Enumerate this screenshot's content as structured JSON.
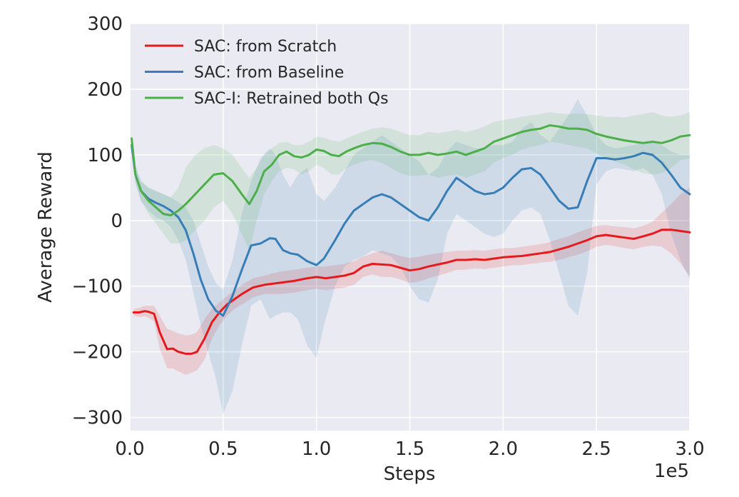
{
  "chart_data": {
    "type": "line",
    "xlabel": "Steps",
    "ylabel": "Average Reward",
    "x_offset_label": "1e5",
    "xlim": [
      0,
      300000
    ],
    "ylim": [
      -320,
      300
    ],
    "x_ticks": [
      0,
      50000,
      100000,
      150000,
      200000,
      250000,
      300000
    ],
    "x_tick_labels": [
      "0.0",
      "0.5",
      "1.0",
      "1.5",
      "2.0",
      "2.5",
      "3.0"
    ],
    "y_ticks": [
      -300,
      -200,
      -100,
      0,
      100,
      200,
      300
    ],
    "y_tick_labels": [
      "−300",
      "−200",
      "−100",
      "0",
      "100",
      "200",
      "300"
    ],
    "grid": true,
    "background": "#eaeaf2",
    "legend_position": "top-left",
    "series": [
      {
        "name": "SAC: from Scratch",
        "color": "#e41a1c",
        "x": [
          2000,
          5000,
          8000,
          10000,
          13000,
          16000,
          20000,
          23000,
          26000,
          30000,
          33000,
          36000,
          40000,
          44000,
          48000,
          52000,
          56000,
          60000,
          66000,
          72000,
          80000,
          88000,
          95000,
          100000,
          105000,
          110000,
          115000,
          120000,
          125000,
          130000,
          135000,
          140000,
          145000,
          150000,
          155000,
          160000,
          165000,
          170000,
          175000,
          180000,
          185000,
          190000,
          195000,
          200000,
          205000,
          210000,
          215000,
          220000,
          225000,
          230000,
          235000,
          240000,
          245000,
          250000,
          255000,
          260000,
          265000,
          270000,
          275000,
          280000,
          285000,
          290000,
          295000,
          300000
        ],
        "y": [
          -140,
          -140,
          -138,
          -139,
          -142,
          -170,
          -196,
          -195,
          -200,
          -203,
          -203,
          -200,
          -180,
          -155,
          -140,
          -128,
          -120,
          -112,
          -102,
          -98,
          -95,
          -92,
          -88,
          -86,
          -88,
          -86,
          -84,
          -80,
          -70,
          -66,
          -67,
          -68,
          -72,
          -76,
          -74,
          -70,
          -67,
          -64,
          -60,
          -60,
          -59,
          -60,
          -58,
          -56,
          -55,
          -54,
          -52,
          -50,
          -48,
          -44,
          -40,
          -35,
          -30,
          -24,
          -22,
          -24,
          -26,
          -28,
          -24,
          -20,
          -14,
          -14,
          -16,
          -18
        ],
        "band_upper": [
          -135,
          -133,
          -130,
          -130,
          -130,
          -145,
          -165,
          -168,
          -172,
          -175,
          -174,
          -170,
          -150,
          -135,
          -125,
          -115,
          -107,
          -98,
          -88,
          -84,
          -78,
          -75,
          -72,
          -70,
          -70,
          -68,
          -66,
          -62,
          -55,
          -50,
          -46,
          -50,
          -54,
          -57,
          -55,
          -52,
          -50,
          -48,
          -46,
          -46,
          -45,
          -46,
          -44,
          -42,
          -42,
          -40,
          -38,
          -36,
          -33,
          -28,
          -24,
          -18,
          -13,
          -8,
          -7,
          -9,
          -10,
          -12,
          -8,
          -2,
          12,
          25,
          40,
          50
        ],
        "band_lower": [
          -145,
          -147,
          -146,
          -148,
          -154,
          -195,
          -225,
          -225,
          -230,
          -235,
          -232,
          -228,
          -212,
          -180,
          -160,
          -145,
          -135,
          -128,
          -117,
          -112,
          -112,
          -110,
          -106,
          -104,
          -106,
          -104,
          -102,
          -98,
          -86,
          -82,
          -86,
          -86,
          -90,
          -95,
          -93,
          -88,
          -84,
          -80,
          -75,
          -75,
          -73,
          -74,
          -72,
          -70,
          -68,
          -68,
          -66,
          -64,
          -63,
          -60,
          -56,
          -52,
          -47,
          -40,
          -37,
          -39,
          -42,
          -44,
          -40,
          -38,
          -40,
          -50,
          -65,
          -85
        ]
      },
      {
        "name": "SAC: from Baseline",
        "color": "#377eb8",
        "x": [
          1000,
          3000,
          6000,
          10000,
          14000,
          18000,
          22000,
          26000,
          30000,
          34000,
          38000,
          42000,
          46000,
          50000,
          55000,
          60000,
          65000,
          70000,
          75000,
          78000,
          82000,
          86000,
          90000,
          95000,
          100000,
          104000,
          110000,
          115000,
          120000,
          125000,
          130000,
          135000,
          140000,
          145000,
          150000,
          155000,
          160000,
          165000,
          170000,
          175000,
          180000,
          185000,
          190000,
          195000,
          200000,
          205000,
          210000,
          215000,
          220000,
          225000,
          230000,
          235000,
          240000,
          245000,
          250000,
          255000,
          260000,
          265000,
          270000,
          275000,
          280000,
          285000,
          290000,
          295000,
          300000
        ],
        "y": [
          115,
          70,
          45,
          33,
          27,
          22,
          15,
          5,
          -15,
          -50,
          -90,
          -120,
          -137,
          -145,
          -115,
          -75,
          -38,
          -35,
          -27,
          -28,
          -45,
          -50,
          -52,
          -62,
          -68,
          -58,
          -30,
          -5,
          15,
          25,
          35,
          40,
          35,
          25,
          15,
          5,
          0,
          20,
          45,
          65,
          55,
          45,
          40,
          42,
          50,
          65,
          78,
          80,
          70,
          50,
          30,
          18,
          20,
          60,
          95,
          95,
          93,
          95,
          98,
          103,
          100,
          88,
          70,
          50,
          40
        ],
        "band_upper": [
          120,
          85,
          60,
          50,
          45,
          40,
          35,
          28,
          20,
          0,
          -35,
          -70,
          -95,
          -105,
          -60,
          10,
          60,
          95,
          110,
          100,
          70,
          50,
          70,
          80,
          40,
          30,
          50,
          75,
          100,
          110,
          120,
          130,
          120,
          110,
          100,
          90,
          70,
          80,
          105,
          120,
          115,
          110,
          110,
          115,
          115,
          120,
          140,
          150,
          130,
          120,
          140,
          160,
          185,
          160,
          130,
          115,
          110,
          112,
          115,
          120,
          122,
          115,
          105,
          100,
          100
        ],
        "band_lower": [
          110,
          55,
          30,
          15,
          5,
          0,
          -10,
          -30,
          -60,
          -110,
          -160,
          -200,
          -240,
          -295,
          -260,
          -190,
          -130,
          -120,
          -150,
          -145,
          -140,
          -140,
          -150,
          -190,
          -210,
          -160,
          -100,
          -70,
          -60,
          -55,
          -45,
          -50,
          -55,
          -70,
          -100,
          -120,
          -125,
          -90,
          -20,
          10,
          0,
          -10,
          -20,
          -25,
          -20,
          0,
          15,
          20,
          10,
          -30,
          -80,
          -130,
          -145,
          -80,
          55,
          75,
          80,
          78,
          75,
          80,
          70,
          40,
          -20,
          -60,
          -90
        ]
      },
      {
        "name": "SAC-I: Retrained both Qs",
        "color": "#4daf4a",
        "x": [
          1000,
          3000,
          6000,
          10000,
          14000,
          18000,
          22000,
          26000,
          30000,
          35000,
          40000,
          45000,
          50000,
          55000,
          60000,
          64000,
          68000,
          72000,
          76000,
          80000,
          84000,
          88000,
          92000,
          96000,
          100000,
          104000,
          108000,
          112000,
          116000,
          120000,
          125000,
          130000,
          135000,
          140000,
          145000,
          150000,
          155000,
          160000,
          165000,
          170000,
          175000,
          180000,
          185000,
          190000,
          195000,
          200000,
          205000,
          210000,
          215000,
          220000,
          225000,
          230000,
          235000,
          240000,
          245000,
          250000,
          255000,
          260000,
          265000,
          270000,
          275000,
          280000,
          285000,
          290000,
          295000,
          300000
        ],
        "y": [
          125,
          70,
          45,
          30,
          20,
          10,
          8,
          15,
          25,
          40,
          55,
          70,
          72,
          60,
          40,
          25,
          45,
          75,
          85,
          100,
          105,
          98,
          96,
          100,
          108,
          106,
          100,
          98,
          105,
          110,
          115,
          118,
          117,
          112,
          105,
          100,
          100,
          103,
          100,
          102,
          105,
          100,
          105,
          110,
          120,
          125,
          130,
          135,
          138,
          140,
          145,
          143,
          140,
          140,
          138,
          132,
          128,
          125,
          122,
          120,
          118,
          120,
          118,
          122,
          128,
          130
        ],
        "band_upper": [
          128,
          80,
          60,
          50,
          45,
          40,
          35,
          50,
          80,
          100,
          110,
          115,
          110,
          100,
          80,
          65,
          80,
          100,
          110,
          118,
          120,
          115,
          115,
          120,
          128,
          126,
          122,
          120,
          125,
          130,
          135,
          140,
          142,
          140,
          135,
          130,
          130,
          135,
          133,
          135,
          138,
          135,
          138,
          143,
          150,
          153,
          155,
          158,
          160,
          162,
          165,
          163,
          162,
          163,
          162,
          160,
          158,
          158,
          157,
          160,
          162,
          165,
          160,
          158,
          160,
          165
        ],
        "band_lower": [
          122,
          60,
          30,
          10,
          -5,
          -20,
          -35,
          -35,
          -30,
          -15,
          0,
          20,
          30,
          10,
          -20,
          -45,
          0,
          40,
          60,
          75,
          80,
          78,
          70,
          75,
          85,
          80,
          70,
          70,
          80,
          85,
          90,
          92,
          88,
          80,
          72,
          68,
          68,
          70,
          65,
          68,
          70,
          65,
          70,
          75,
          88,
          95,
          100,
          108,
          112,
          115,
          120,
          118,
          115,
          112,
          110,
          102,
          95,
          90,
          85,
          78,
          72,
          70,
          72,
          80,
          92,
          95
        ]
      }
    ]
  }
}
